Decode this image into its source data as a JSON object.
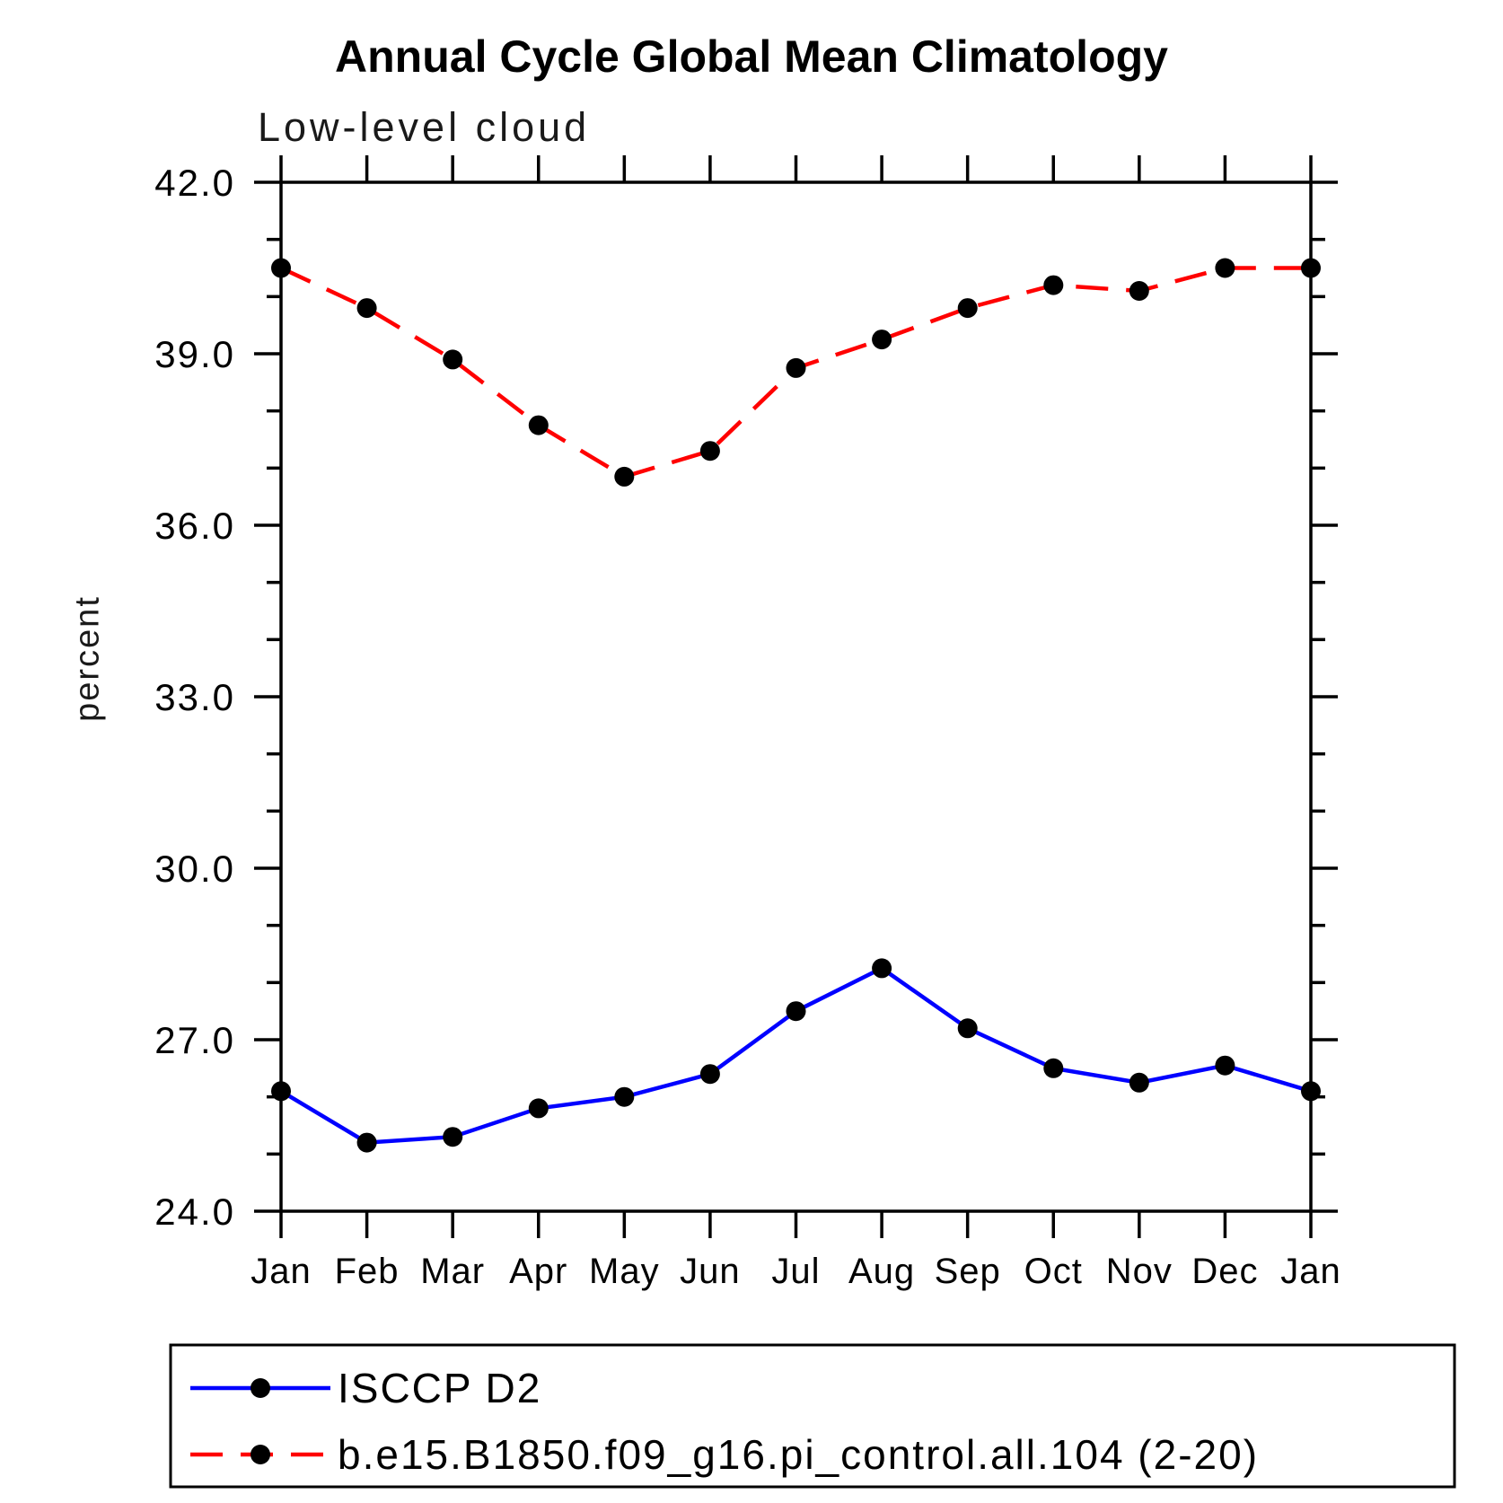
{
  "chart_data": {
    "type": "line",
    "title": "Annual Cycle Global Mean Climatology",
    "subtitle": "Low-level cloud",
    "ylabel": "percent",
    "ylim": [
      24.0,
      42.0
    ],
    "yticks": [
      24.0,
      27.0,
      30.0,
      33.0,
      36.0,
      39.0,
      42.0
    ],
    "y_minor_interval": 1.0,
    "grid": false,
    "legend_position": "bottom-left-box",
    "categories": [
      "Jan",
      "Feb",
      "Mar",
      "Apr",
      "May",
      "Jun",
      "Jul",
      "Aug",
      "Sep",
      "Oct",
      "Nov",
      "Dec",
      "Jan"
    ],
    "series": [
      {
        "name": "ISCCP D2",
        "color": "#0000ff",
        "line_style": "solid",
        "marker": "filled-circle",
        "marker_color": "#000000",
        "values": [
          26.1,
          25.2,
          25.3,
          25.8,
          26.0,
          26.4,
          27.5,
          28.25,
          27.2,
          26.5,
          26.25,
          26.55,
          26.1
        ]
      },
      {
        "name": "b.e15.B1850.f09_g16.pi_control.all.104 (2-20)",
        "color": "#ff0000",
        "line_style": "dashed",
        "marker": "filled-circle",
        "marker_color": "#000000",
        "values": [
          40.5,
          39.8,
          38.9,
          37.75,
          36.85,
          37.3,
          38.75,
          39.25,
          39.8,
          40.2,
          40.1,
          40.5,
          40.5
        ]
      }
    ]
  }
}
